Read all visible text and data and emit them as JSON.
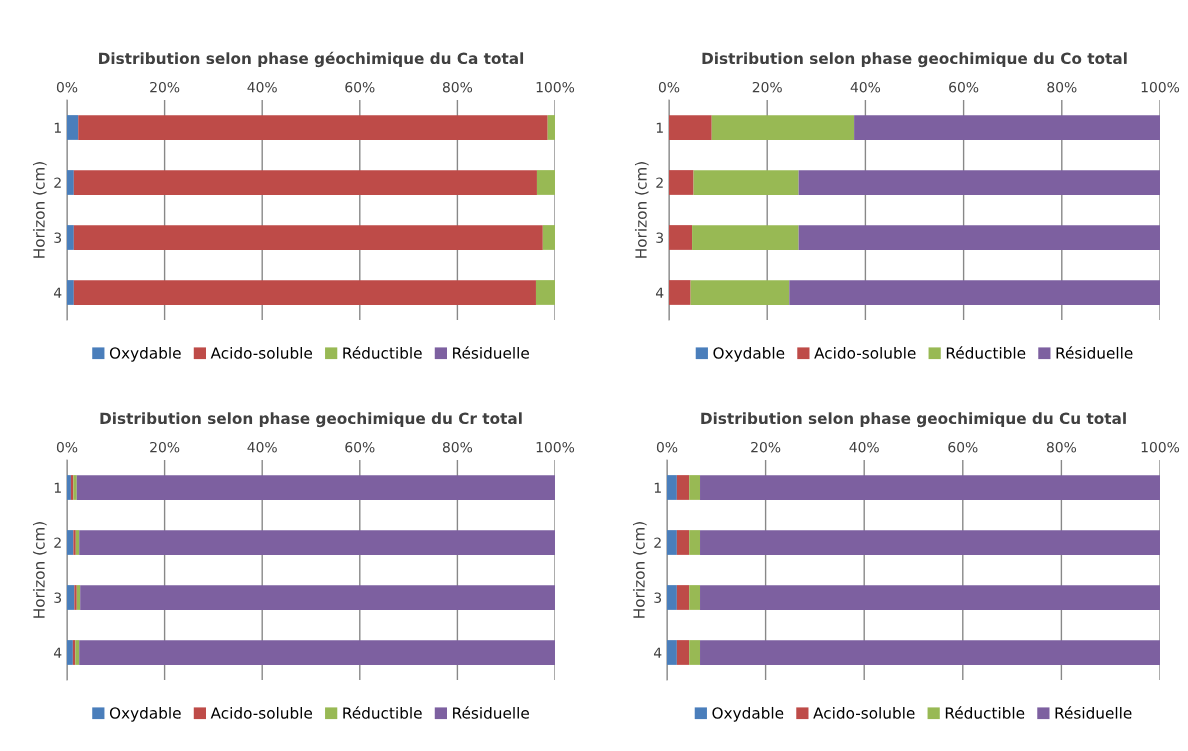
{
  "chart_data": [
    {
      "type": "bar",
      "orientation": "horizontal",
      "stacked": true,
      "title": "Distribution selon phase géochimique du Ca total",
      "ylabel": "Horizon (cm)",
      "categories": [
        "1",
        "2",
        "3",
        "4"
      ],
      "xlim": [
        0,
        100
      ],
      "xticks": [
        {
          "value": 0,
          "label": "0%"
        },
        {
          "value": 20,
          "label": "20%"
        },
        {
          "value": 40,
          "label": "40%"
        },
        {
          "value": 60,
          "label": "60%"
        },
        {
          "value": 80,
          "label": "80%"
        },
        {
          "value": 100,
          "label": "100%"
        }
      ],
      "grid": "x",
      "legend": "bottom",
      "series": [
        {
          "name": "Oxydable",
          "color": "#4a7ebb",
          "values": [
            2.3,
            1.4,
            1.4,
            1.4
          ]
        },
        {
          "name": "Acido-soluble",
          "color": "#be4b48",
          "values": [
            96.2,
            94.9,
            96.1,
            94.7
          ]
        },
        {
          "name": "Réductible",
          "color": "#98b954",
          "values": [
            1.5,
            3.7,
            2.5,
            3.9
          ]
        },
        {
          "name": "Résiduelle",
          "color": "#7d60a0",
          "values": [
            0,
            0,
            0,
            0
          ]
        }
      ]
    },
    {
      "type": "bar",
      "orientation": "horizontal",
      "stacked": true,
      "title": "Distribution selon phase geochimique du Co total",
      "ylabel": "Horizon (cm)",
      "categories": [
        "1",
        "2",
        "3",
        "4"
      ],
      "xlim": [
        0,
        100
      ],
      "xticks": [
        {
          "value": 0,
          "label": "0%"
        },
        {
          "value": 20,
          "label": "20%"
        },
        {
          "value": 40,
          "label": "40%"
        },
        {
          "value": 60,
          "label": "60%"
        },
        {
          "value": 80,
          "label": "80%"
        },
        {
          "value": 100,
          "label": "100%"
        }
      ],
      "grid": "x",
      "legend": "bottom",
      "series": [
        {
          "name": "Oxydable",
          "color": "#4a7ebb",
          "values": [
            0,
            0,
            0,
            0
          ]
        },
        {
          "name": "Acido-soluble",
          "color": "#be4b48",
          "values": [
            8.7,
            5.0,
            4.7,
            4.4
          ]
        },
        {
          "name": "Réductible",
          "color": "#98b954",
          "values": [
            29.0,
            21.4,
            21.7,
            20.1
          ]
        },
        {
          "name": "Résiduelle",
          "color": "#7d60a0",
          "values": [
            62.3,
            73.6,
            73.6,
            75.5
          ]
        }
      ]
    },
    {
      "type": "bar",
      "orientation": "horizontal",
      "stacked": true,
      "title": "Distribution selon phase geochimique du Cr total",
      "ylabel": "Horizon (cm)",
      "categories": [
        "1",
        "2",
        "3",
        "4"
      ],
      "xlim": [
        0,
        100
      ],
      "xticks": [
        {
          "value": 0,
          "label": "0%"
        },
        {
          "value": 20,
          "label": "20%"
        },
        {
          "value": 40,
          "label": "40%"
        },
        {
          "value": 60,
          "label": "60%"
        },
        {
          "value": 80,
          "label": "80%"
        },
        {
          "value": 100,
          "label": "100%"
        }
      ],
      "grid": "x",
      "legend": "bottom",
      "series": [
        {
          "name": "Oxydable",
          "color": "#4a7ebb",
          "values": [
            0.8,
            1.3,
            1.5,
            1.2
          ]
        },
        {
          "name": "Acido-soluble",
          "color": "#be4b48",
          "values": [
            0.5,
            0.5,
            0.5,
            0.5
          ]
        },
        {
          "name": "Réductible",
          "color": "#98b954",
          "values": [
            0.7,
            0.7,
            0.7,
            0.8
          ]
        },
        {
          "name": "Résiduelle",
          "color": "#7d60a0",
          "values": [
            98.0,
            97.5,
            97.3,
            97.5
          ]
        }
      ]
    },
    {
      "type": "bar",
      "orientation": "horizontal",
      "stacked": true,
      "title": "Distribution selon phase geochimique du Cu total",
      "ylabel": "Horizon (cm)",
      "categories": [
        "1",
        "2",
        "3",
        "4"
      ],
      "xlim": [
        0,
        100
      ],
      "xticks": [
        {
          "value": 0,
          "label": "0%"
        },
        {
          "value": 20,
          "label": "20%"
        },
        {
          "value": 40,
          "label": "40%"
        },
        {
          "value": 60,
          "label": "60%"
        },
        {
          "value": 80,
          "label": "80%"
        },
        {
          "value": 100,
          "label": "100%"
        }
      ],
      "grid": "x",
      "legend": "bottom",
      "series": [
        {
          "name": "Oxydable",
          "color": "#4a7ebb",
          "values": [
            2.0,
            2.0,
            2.0,
            2.0
          ]
        },
        {
          "name": "Acido-soluble",
          "color": "#be4b48",
          "values": [
            2.5,
            2.5,
            2.5,
            2.5
          ]
        },
        {
          "name": "Réductible",
          "color": "#98b954",
          "values": [
            2.2,
            2.2,
            2.2,
            2.2
          ]
        },
        {
          "name": "Résiduelle",
          "color": "#7d60a0",
          "values": [
            93.3,
            93.3,
            93.3,
            93.3
          ]
        }
      ]
    }
  ]
}
